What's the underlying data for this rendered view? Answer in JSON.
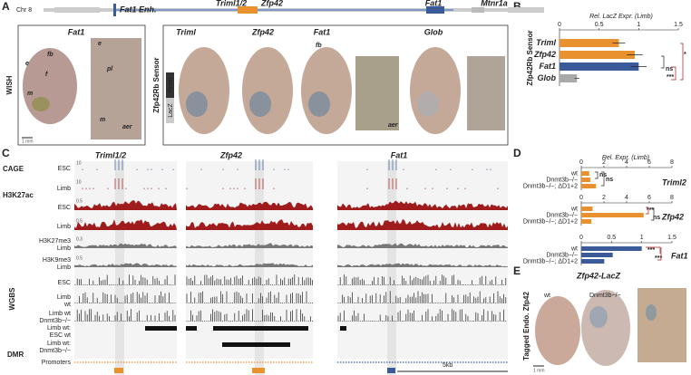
{
  "panel_labels": [
    "A",
    "B",
    "C",
    "D",
    "E"
  ],
  "panel_a": {
    "chr": "Chr 8",
    "genes": [
      "Fat1 Enh.",
      "Triml1/2",
      "Zfp42",
      "Fat1",
      "Mtnr1a"
    ],
    "wish_label": "WISH",
    "wish_title": "Fat1",
    "wish_annotations": [
      "e",
      "fb",
      "f",
      "m",
      "pl",
      "e",
      "m",
      "aer"
    ],
    "scale": "1 mm",
    "sensor_label": "Zfp42Rb Sensor",
    "prom": "Prom",
    "lacz": "LacZ",
    "embryos": [
      "Triml",
      "Zfp42",
      "Fat1",
      "Glob"
    ],
    "embryo_annotations": [
      "fb",
      "aer"
    ]
  },
  "panel_c": {
    "genes": [
      "Triml1/2",
      "Zfp42",
      "Fat1"
    ],
    "groups": [
      "CAGE",
      "H3K27ac",
      "WGBS",
      "DMR"
    ],
    "track_labels": [
      "ESC",
      "Limb",
      "ESC",
      "Limb",
      "H3K27me3",
      "Limb",
      "H3K9me3",
      "Limb",
      "ESC",
      "Limb",
      "wt",
      "Limb wt",
      "Dnmt3b−/−",
      "Limb wt:",
      "ESC wt",
      "Limb wt:",
      "Dnmt3b−/−",
      "Promoters"
    ],
    "track_max": [
      "10",
      "10",
      "0.5",
      "0.5",
      "0.3",
      "0.5"
    ],
    "scale": "5kb"
  },
  "panel_e": {
    "title": "Zfp42-LacZ",
    "side_label": "Tagged Endo. Zfp42",
    "genotypes": [
      "wt",
      "Dnmt3b−/−"
    ],
    "scale": "1 mm"
  },
  "chart_data": [
    {
      "type": "bar",
      "orientation": "horizontal",
      "title": "Rel. LacZ Expr. (Limb)",
      "ylabel": "Zfp42Rb Sensor",
      "categories": [
        "Triml",
        "Zfp42",
        "Fat1",
        "Glob"
      ],
      "values": [
        0.75,
        0.95,
        1.0,
        0.22
      ],
      "errors": [
        0.08,
        0.1,
        0.1,
        0.03
      ],
      "colors": [
        "#e8912e",
        "#e8912e",
        "#3b5a9a",
        "#a9a9a9"
      ],
      "xlim": [
        0,
        1.5
      ],
      "xticks": [
        0,
        0.5,
        1,
        1.5
      ],
      "annotations": [
        "ns",
        "*",
        "***"
      ]
    },
    {
      "type": "bar",
      "orientation": "horizontal",
      "title": "Rel. Expr. (Limb)",
      "label": "Triml2",
      "categories": [
        "wt",
        "Dnmt3b−/−",
        "Dnmt3b−/−; ΔD1+2"
      ],
      "values": [
        0.7,
        0.8,
        1.3
      ],
      "color": "#e8912e",
      "xlim": [
        0,
        8
      ],
      "xticks": [
        0,
        2,
        4,
        6,
        8
      ],
      "annotations": [
        "ns",
        "ns"
      ]
    },
    {
      "type": "bar",
      "orientation": "horizontal",
      "label": "Zfp42",
      "categories": [
        "wt",
        "Dnmt3b−/−",
        "Dnmt3b−/−; ΔD1+2"
      ],
      "values": [
        1,
        5.5,
        0.9
      ],
      "color": "#e8912e",
      "xlim": [
        0,
        8
      ],
      "xticks": [
        0,
        2,
        4,
        6,
        8
      ],
      "annotations": [
        "***",
        "ns"
      ]
    },
    {
      "type": "bar",
      "orientation": "horizontal",
      "label": "Fat1",
      "categories": [
        "wt",
        "Dnmt3b−/−",
        "Dnmt3b−/−; ΔD1+2"
      ],
      "values": [
        1,
        0.52,
        0.38
      ],
      "color": "#3b5a9a",
      "xlim": [
        0,
        1.5
      ],
      "xticks": [
        0,
        0.5,
        1,
        1.5
      ],
      "annotations": [
        "***",
        "***"
      ]
    }
  ]
}
